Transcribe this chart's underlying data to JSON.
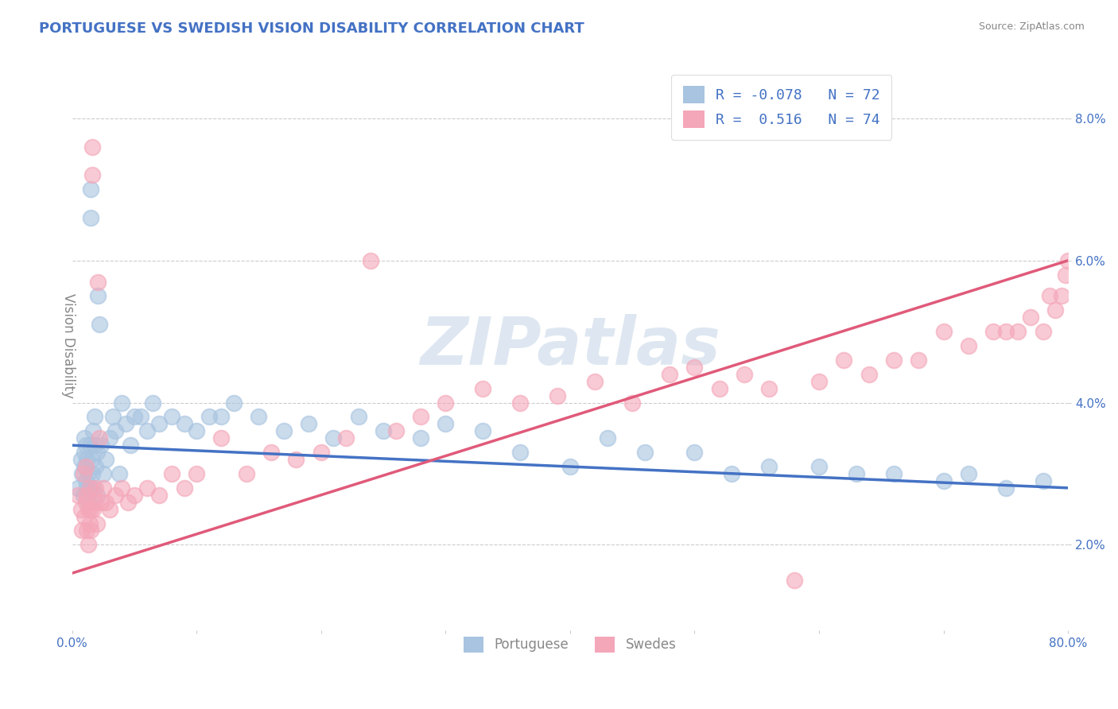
{
  "title": "PORTUGUESE VS SWEDISH VISION DISABILITY CORRELATION CHART",
  "source": "Source: ZipAtlas.com",
  "ylabel": "Vision Disability",
  "xlim": [
    0.0,
    0.8
  ],
  "ylim": [
    0.008,
    0.088
  ],
  "xticks": [
    0.0,
    0.1,
    0.2,
    0.3,
    0.4,
    0.5,
    0.6,
    0.7,
    0.8
  ],
  "xticklabels": [
    "0.0%",
    "",
    "",
    "",
    "",
    "",
    "",
    "",
    "80.0%"
  ],
  "yticks": [
    0.02,
    0.04,
    0.06,
    0.08
  ],
  "yticklabels": [
    "2.0%",
    "4.0%",
    "6.0%",
    "8.0%"
  ],
  "portuguese_color": "#a8c4e0",
  "swedes_color": "#f4a7b9",
  "trend_portuguese_color": "#4472c4",
  "trend_swedes_color": "#e05a7a",
  "portuguese_R": -0.078,
  "portuguese_N": 72,
  "swedes_R": 0.516,
  "swedes_N": 74,
  "watermark": "ZIPatlas",
  "watermark_color": "#c8d8e8",
  "background_color": "#ffffff",
  "grid_color": "#cccccc",
  "title_color": "#4472c4",
  "axis_label_color": "#888888",
  "tick_color": "#4472c4",
  "legend_text_color": "#4472c4",
  "trend_portuguese": {
    "x_start": 0.0,
    "x_end": 0.8,
    "y_start": 0.034,
    "y_end": 0.028
  },
  "trend_swedes": {
    "x_start": 0.0,
    "x_end": 0.8,
    "y_start": 0.016,
    "y_end": 0.06
  },
  "portuguese_x": [
    0.005,
    0.007,
    0.008,
    0.009,
    0.01,
    0.01,
    0.01,
    0.011,
    0.011,
    0.012,
    0.012,
    0.013,
    0.013,
    0.014,
    0.014,
    0.015,
    0.015,
    0.016,
    0.016,
    0.017,
    0.017,
    0.018,
    0.018,
    0.019,
    0.02,
    0.02,
    0.021,
    0.022,
    0.023,
    0.025,
    0.027,
    0.03,
    0.033,
    0.035,
    0.038,
    0.04,
    0.043,
    0.047,
    0.05,
    0.055,
    0.06,
    0.065,
    0.07,
    0.08,
    0.09,
    0.1,
    0.11,
    0.12,
    0.13,
    0.15,
    0.17,
    0.19,
    0.21,
    0.23,
    0.25,
    0.28,
    0.3,
    0.33,
    0.36,
    0.4,
    0.43,
    0.46,
    0.5,
    0.53,
    0.56,
    0.6,
    0.63,
    0.66,
    0.7,
    0.72,
    0.75,
    0.78
  ],
  "portuguese_y": [
    0.028,
    0.032,
    0.03,
    0.027,
    0.031,
    0.035,
    0.033,
    0.029,
    0.034,
    0.028,
    0.032,
    0.026,
    0.03,
    0.034,
    0.028,
    0.07,
    0.066,
    0.032,
    0.03,
    0.028,
    0.036,
    0.034,
    0.038,
    0.031,
    0.027,
    0.033,
    0.055,
    0.051,
    0.034,
    0.03,
    0.032,
    0.035,
    0.038,
    0.036,
    0.03,
    0.04,
    0.037,
    0.034,
    0.038,
    0.038,
    0.036,
    0.04,
    0.037,
    0.038,
    0.037,
    0.036,
    0.038,
    0.038,
    0.04,
    0.038,
    0.036,
    0.037,
    0.035,
    0.038,
    0.036,
    0.035,
    0.037,
    0.036,
    0.033,
    0.031,
    0.035,
    0.033,
    0.033,
    0.03,
    0.031,
    0.031,
    0.03,
    0.03,
    0.029,
    0.03,
    0.028,
    0.029
  ],
  "swedes_x": [
    0.005,
    0.007,
    0.008,
    0.009,
    0.01,
    0.011,
    0.011,
    0.012,
    0.012,
    0.013,
    0.013,
    0.014,
    0.014,
    0.015,
    0.015,
    0.016,
    0.016,
    0.017,
    0.018,
    0.019,
    0.02,
    0.021,
    0.022,
    0.023,
    0.025,
    0.027,
    0.03,
    0.035,
    0.04,
    0.045,
    0.05,
    0.06,
    0.07,
    0.08,
    0.09,
    0.1,
    0.12,
    0.14,
    0.16,
    0.18,
    0.2,
    0.22,
    0.24,
    0.26,
    0.28,
    0.3,
    0.33,
    0.36,
    0.39,
    0.42,
    0.45,
    0.48,
    0.5,
    0.52,
    0.54,
    0.56,
    0.58,
    0.6,
    0.62,
    0.64,
    0.66,
    0.68,
    0.7,
    0.72,
    0.74,
    0.75,
    0.76,
    0.77,
    0.78,
    0.785,
    0.79,
    0.795,
    0.798,
    0.8
  ],
  "swedes_y": [
    0.027,
    0.025,
    0.022,
    0.03,
    0.024,
    0.026,
    0.031,
    0.022,
    0.027,
    0.025,
    0.02,
    0.023,
    0.028,
    0.025,
    0.022,
    0.076,
    0.072,
    0.025,
    0.026,
    0.028,
    0.023,
    0.057,
    0.035,
    0.026,
    0.028,
    0.026,
    0.025,
    0.027,
    0.028,
    0.026,
    0.027,
    0.028,
    0.027,
    0.03,
    0.028,
    0.03,
    0.035,
    0.03,
    0.033,
    0.032,
    0.033,
    0.035,
    0.06,
    0.036,
    0.038,
    0.04,
    0.042,
    0.04,
    0.041,
    0.043,
    0.04,
    0.044,
    0.045,
    0.042,
    0.044,
    0.042,
    0.015,
    0.043,
    0.046,
    0.044,
    0.046,
    0.046,
    0.05,
    0.048,
    0.05,
    0.05,
    0.05,
    0.052,
    0.05,
    0.055,
    0.053,
    0.055,
    0.058,
    0.06
  ]
}
